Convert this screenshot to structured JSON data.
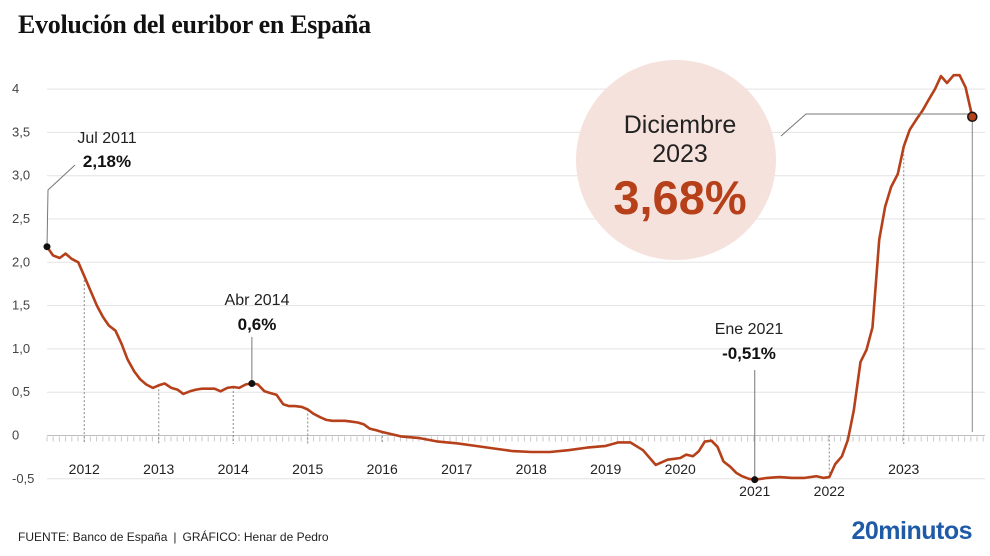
{
  "header": {
    "title": "Evolución del euribor en España"
  },
  "chart_data": {
    "type": "line",
    "ylim": [
      -0.6,
      4.3
    ],
    "y_ticks": [
      {
        "value": 4,
        "label": "4"
      },
      {
        "value": 3.5,
        "label": "3,5"
      },
      {
        "value": 3.0,
        "label": "3,0"
      },
      {
        "value": 2.5,
        "label": "2,5"
      },
      {
        "value": 2.0,
        "label": "2,0"
      },
      {
        "value": 1.5,
        "label": "1,5"
      },
      {
        "value": 1.0,
        "label": "1,0"
      },
      {
        "value": 0.5,
        "label": "0,5"
      },
      {
        "value": 0,
        "label": "0"
      },
      {
        "value": -0.5,
        "label": "-0,5"
      }
    ],
    "x_range": [
      2011.5,
      2024.0
    ],
    "x_ticks": [
      {
        "value": 2012,
        "label": "2012"
      },
      {
        "value": 2013,
        "label": "2013"
      },
      {
        "value": 2014,
        "label": "2014"
      },
      {
        "value": 2015,
        "label": "2015"
      },
      {
        "value": 2016,
        "label": "2016"
      },
      {
        "value": 2017,
        "label": "2017"
      },
      {
        "value": 2018,
        "label": "2018"
      },
      {
        "value": 2019,
        "label": "2019"
      },
      {
        "value": 2020,
        "label": "2020"
      },
      {
        "value": 2021,
        "label": "2021"
      },
      {
        "value": 2022,
        "label": "2022"
      },
      {
        "value": 2023,
        "label": "2023"
      }
    ],
    "grid": true,
    "line_color": "#b5401a",
    "series": [
      {
        "x": [
          2011.5,
          2011.58,
          2011.67,
          2011.75,
          2011.83,
          2011.92,
          2012.0,
          2012.08,
          2012.17,
          2012.25,
          2012.33,
          2012.42,
          2012.5,
          2012.58,
          2012.67,
          2012.75,
          2012.83,
          2012.92,
          2013.0,
          2013.08,
          2013.17,
          2013.25,
          2013.33,
          2013.42,
          2013.5,
          2013.58,
          2013.67,
          2013.75,
          2013.83,
          2013.92,
          2014.0,
          2014.08,
          2014.17,
          2014.25,
          2014.33,
          2014.42,
          2014.5,
          2014.58,
          2014.67,
          2014.75,
          2014.83,
          2014.92,
          2015.0,
          2015.08,
          2015.17,
          2015.25,
          2015.33,
          2015.42,
          2015.5,
          2015.58,
          2015.67,
          2015.75,
          2015.83,
          2015.92,
          2016.0,
          2016.25,
          2016.5,
          2016.75,
          2017.0,
          2017.25,
          2017.5,
          2017.75,
          2018.0,
          2018.25,
          2018.5,
          2018.75,
          2019.0,
          2019.17,
          2019.33,
          2019.5,
          2019.67,
          2019.83,
          2020.0,
          2020.08,
          2020.17,
          2020.25,
          2020.33,
          2020.42,
          2020.5,
          2020.58,
          2020.67,
          2020.75,
          2020.83,
          2020.92,
          2021.0,
          2021.17,
          2021.33,
          2021.5,
          2021.67,
          2021.83,
          2021.92,
          2022.0,
          2022.08,
          2022.17,
          2022.25,
          2022.33,
          2022.42,
          2022.5,
          2022.58,
          2022.67,
          2022.75,
          2022.83,
          2022.92,
          2023.0,
          2023.08,
          2023.17,
          2023.25,
          2023.33,
          2023.42,
          2023.5,
          2023.58,
          2023.67,
          2023.75,
          2023.83,
          2023.92
        ],
        "y": [
          2.18,
          2.08,
          2.05,
          2.1,
          2.04,
          2.0,
          1.84,
          1.68,
          1.5,
          1.37,
          1.27,
          1.21,
          1.06,
          0.88,
          0.74,
          0.65,
          0.59,
          0.55,
          0.58,
          0.6,
          0.55,
          0.53,
          0.48,
          0.51,
          0.53,
          0.54,
          0.54,
          0.54,
          0.51,
          0.55,
          0.56,
          0.55,
          0.59,
          0.6,
          0.59,
          0.51,
          0.49,
          0.47,
          0.36,
          0.34,
          0.34,
          0.33,
          0.3,
          0.25,
          0.21,
          0.18,
          0.17,
          0.17,
          0.17,
          0.16,
          0.15,
          0.13,
          0.08,
          0.06,
          0.04,
          -0.01,
          -0.03,
          -0.07,
          -0.09,
          -0.12,
          -0.15,
          -0.18,
          -0.19,
          -0.19,
          -0.17,
          -0.14,
          -0.12,
          -0.08,
          -0.08,
          -0.17,
          -0.34,
          -0.28,
          -0.26,
          -0.22,
          -0.24,
          -0.18,
          -0.07,
          -0.06,
          -0.13,
          -0.3,
          -0.36,
          -0.43,
          -0.47,
          -0.5,
          -0.51,
          -0.49,
          -0.48,
          -0.49,
          -0.49,
          -0.47,
          -0.49,
          -0.48,
          -0.33,
          -0.24,
          -0.05,
          0.29,
          0.85,
          0.99,
          1.25,
          2.26,
          2.64,
          2.87,
          3.02,
          3.34,
          3.53,
          3.65,
          3.75,
          3.87,
          4.0,
          4.15,
          4.07,
          4.16,
          4.16,
          4.02,
          3.68
        ]
      }
    ],
    "annotations": [
      {
        "id": "jul2011",
        "x": 2011.5,
        "y": 2.18,
        "label": "Jul 2011",
        "value": "2,18%"
      },
      {
        "id": "abr2014",
        "x": 2014.25,
        "y": 0.6,
        "label": "Abr 2014",
        "value": "0,6%"
      },
      {
        "id": "ene2021",
        "x": 2021.0,
        "y": -0.51,
        "label": "Ene 2021",
        "value": "-0,51%"
      },
      {
        "id": "dic2023",
        "x": 2023.92,
        "y": 3.68,
        "label_line1": "Diciembre",
        "label_line2": "2023",
        "value": "3,68%"
      }
    ],
    "highlight_circle_color": "#f6e2dc",
    "highlight_value_color": "#b5401a"
  },
  "footer": {
    "source": "FUENTE: Banco de España",
    "separator": "|",
    "credit": "GRÁFICO: Henar de Pedro"
  },
  "logo": {
    "text": "20minutos"
  }
}
